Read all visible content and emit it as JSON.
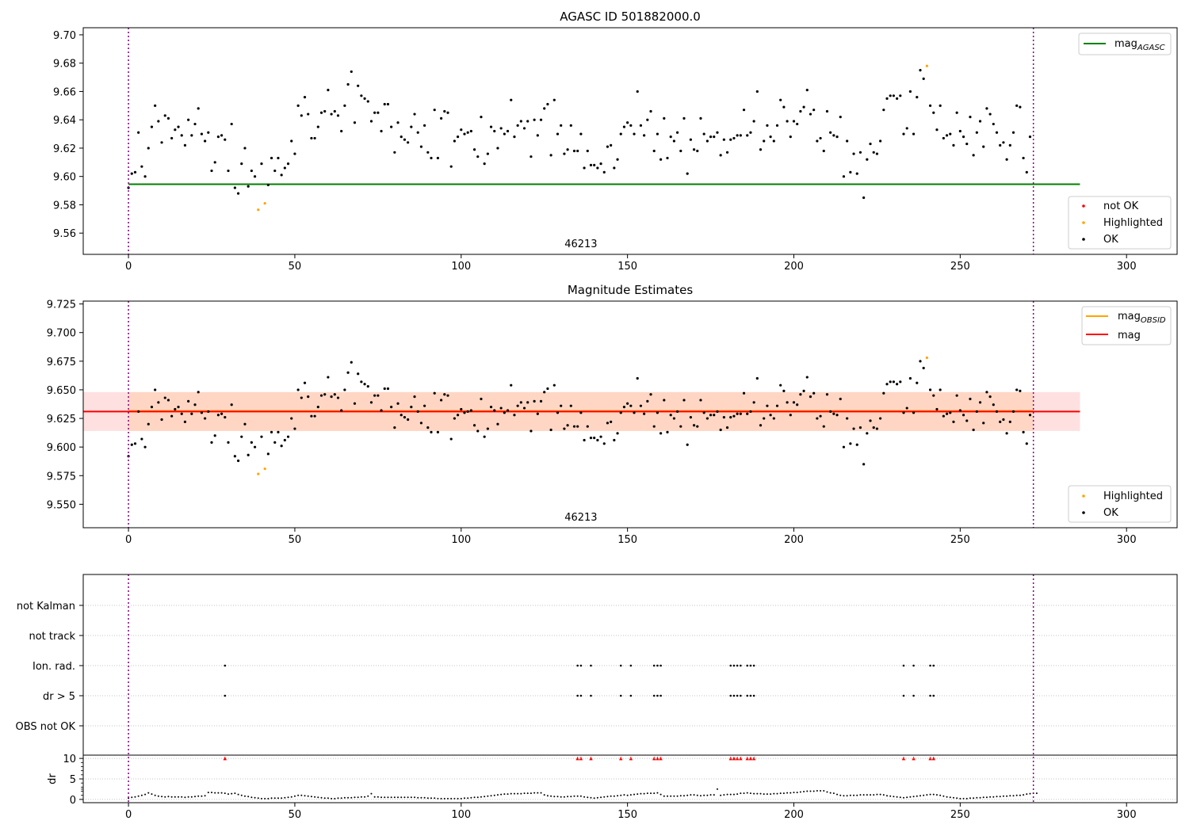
{
  "chart_data": [
    {
      "type": "scatter",
      "title": "AGASC ID 501882000.0",
      "xlim": [
        -13.6,
        315.2
      ],
      "ylim": [
        9.545,
        9.705
      ],
      "xticks": [
        0,
        50,
        100,
        150,
        200,
        250,
        300
      ],
      "yticks": [
        9.56,
        9.58,
        9.6,
        9.62,
        9.64,
        9.66,
        9.68,
        9.7
      ],
      "grid": false,
      "obsid_label": "46213",
      "obsid_bounds": [
        0,
        272
      ],
      "lines": [
        {
          "name": "mag_AGASC",
          "name_main": "mag",
          "name_sub": "AGASC",
          "y": 9.5945,
          "x": [
            0,
            286
          ],
          "color": "#008000"
        }
      ],
      "legend": [
        {
          "label": "not OK",
          "color": "#ff0000"
        },
        {
          "label": "Highlighted",
          "color": "#ffa500"
        },
        {
          "label": "OK",
          "color": "#000000"
        }
      ],
      "highlighted": [
        [
          39,
          9.5765
        ],
        [
          41,
          9.581
        ],
        [
          240,
          9.678
        ]
      ],
      "series_ref": "mag_points"
    },
    {
      "type": "scatter",
      "title": "Magnitude Estimates",
      "xlim": [
        -13.6,
        315.2
      ],
      "ylim": [
        9.5295,
        9.7275
      ],
      "xticks": [
        0,
        50,
        100,
        150,
        200,
        250,
        300
      ],
      "yticks": [
        9.55,
        9.575,
        9.6,
        9.625,
        9.65,
        9.675,
        9.7,
        9.725
      ],
      "grid": false,
      "obsid_label": "46213",
      "obsid_bounds": [
        0,
        272
      ],
      "lines": [
        {
          "name": "mag_OBSID",
          "name_main": "mag",
          "name_sub": "OBSID",
          "y": 9.6315,
          "x": [
            0,
            272
          ],
          "color": "#ffa500",
          "band": [
            9.614,
            9.648
          ]
        },
        {
          "name": "mag",
          "name_main": "mag",
          "name_sub": "",
          "y": 9.631,
          "x": [
            -13.6,
            286
          ],
          "color": "#ff0000",
          "band": [
            9.614,
            9.648
          ]
        }
      ],
      "legend": [
        {
          "label": "Highlighted",
          "color": "#ffa500"
        },
        {
          "label": "OK",
          "color": "#000000"
        }
      ],
      "highlighted": [
        [
          39,
          9.5765
        ],
        [
          41,
          9.581
        ],
        [
          240,
          9.678
        ]
      ],
      "series_ref": "mag_points"
    },
    {
      "type": "scatter",
      "xlim": [
        -13.6,
        315.2
      ],
      "xticks": [
        0,
        50,
        100,
        150,
        200,
        250,
        300
      ],
      "flag_rows": [
        "not Kalman",
        "not track",
        "Ion. rad.",
        "dr > 5",
        "OBS not OK"
      ],
      "flags": {
        "not Kalman": [],
        "not track": [],
        "Ion. rad.": [
          29,
          135,
          136,
          139,
          148,
          151,
          158,
          159,
          160,
          181,
          182,
          183,
          184,
          186,
          187,
          188,
          233,
          236,
          241,
          242
        ],
        "dr > 5": [
          29,
          135,
          136,
          139,
          148,
          151,
          158,
          159,
          160,
          181,
          182,
          183,
          184,
          186,
          187,
          188,
          233,
          236,
          241,
          242
        ],
        "OBS not OK": []
      },
      "dr_ylabel": "dr",
      "dr_ylim": [
        -0.8,
        10.8
      ],
      "dr_yticks": [
        0,
        5,
        10
      ],
      "dr_clipped_marker_value": 10,
      "dr_values": [
        0.3,
        0.5,
        0.6,
        0.8,
        1.0,
        1.2,
        1.6,
        1.3,
        1.0,
        0.8,
        0.7,
        0.6,
        0.7,
        0.6,
        0.6,
        0.6,
        0.6,
        0.5,
        0.6,
        0.6,
        0.7,
        0.8,
        0.8,
        0.9,
        1.7,
        1.7,
        1.6,
        1.6,
        1.6,
        1.5,
        1.3,
        1.4,
        1.5,
        1.2,
        1.0,
        0.8,
        0.7,
        0.5,
        0.4,
        0.3,
        0.2,
        0.2,
        0.2,
        0.3,
        0.3,
        0.3,
        0.3,
        0.4,
        0.5,
        0.6,
        0.8,
        1.0,
        1.0,
        0.9,
        0.8,
        0.7,
        0.6,
        0.5,
        0.4,
        0.3,
        0.3,
        0.2,
        0.2,
        0.3,
        0.3,
        0.4,
        0.4,
        0.4,
        0.5,
        0.5,
        0.6,
        0.6,
        0.8,
        1.4,
        0.6,
        0.6,
        0.5,
        0.5,
        0.5,
        0.5,
        0.5,
        0.5,
        0.5,
        0.5,
        0.5,
        0.5,
        0.5,
        0.4,
        0.4,
        0.4,
        0.3,
        0.3,
        0.3,
        0.2,
        0.2,
        0.2,
        0.2,
        0.2,
        0.2,
        0.2,
        0.2,
        0.3,
        0.3,
        0.4,
        0.5,
        0.5,
        0.6,
        0.7,
        0.8,
        0.9,
        1.0,
        1.1,
        1.2,
        1.3,
        1.3,
        1.4,
        1.4,
        1.4,
        1.4,
        1.5,
        1.5,
        1.5,
        1.6,
        1.6,
        1.6,
        1.1,
        0.9,
        0.8,
        0.7,
        0.7,
        0.6,
        0.6,
        0.7,
        0.7,
        0.8,
        0.8,
        0.8,
        0.6,
        0.5,
        0.4,
        0.3,
        0.4,
        0.5,
        0.6,
        0.7,
        0.8,
        0.8,
        0.9,
        1.0,
        1.1,
        1.0,
        1.1,
        1.2,
        1.3,
        1.4,
        1.4,
        1.5,
        1.5,
        1.5,
        1.6,
        1.2,
        0.8,
        0.8,
        0.8,
        0.8,
        0.8,
        0.9,
        0.9,
        1.0,
        1.1,
        1.1,
        1.0,
        0.9,
        1.0,
        1.0,
        1.1,
        1.1,
        2.5,
        1.0,
        1.1,
        1.2,
        1.2,
        1.2,
        1.3,
        1.5,
        1.5,
        1.6,
        1.5,
        1.4,
        1.4,
        1.4,
        1.3,
        1.3,
        1.3,
        1.4,
        1.4,
        1.5,
        1.5,
        1.6,
        1.6,
        1.7,
        1.7,
        1.8,
        1.9,
        2.0,
        2.0,
        2.0,
        2.1,
        2.1,
        2.1,
        1.8,
        1.6,
        1.5,
        1.2,
        1.0,
        0.9,
        0.9,
        1.0,
        1.0,
        1.0,
        1.1,
        1.1,
        1.1,
        1.1,
        1.1,
        1.2,
        1.2,
        1.1,
        0.9,
        0.8,
        0.7,
        0.6,
        0.5,
        0.4,
        0.5,
        0.6,
        0.7,
        0.8,
        0.9,
        1.0,
        1.1,
        1.2,
        1.2,
        1.1,
        1.0,
        0.8,
        0.6,
        0.5,
        0.4,
        0.3,
        0.2,
        0.2,
        0.2,
        0.3,
        0.3,
        0.4,
        0.4,
        0.5,
        0.5,
        0.6,
        0.6,
        0.7,
        0.7,
        0.8,
        0.8,
        0.9,
        0.9,
        1.0,
        1.0,
        1.1,
        1.3,
        1.4,
        1.5,
        1.5
      ]
    }
  ],
  "mag_points": [
    9.592,
    9.602,
    9.603,
    9.631,
    9.607,
    9.6,
    9.62,
    9.635,
    9.65,
    9.639,
    9.624,
    9.643,
    9.641,
    9.627,
    9.633,
    9.635,
    9.629,
    9.622,
    9.64,
    9.629,
    9.637,
    9.648,
    9.63,
    9.625,
    9.631,
    9.604,
    9.61,
    9.628,
    9.629,
    9.626,
    9.604,
    9.637,
    9.592,
    9.588,
    9.609,
    9.62,
    9.593,
    9.604,
    9.6,
    9.5765,
    9.609,
    9.581,
    9.594,
    9.613,
    9.604,
    9.613,
    9.601,
    9.606,
    9.609,
    9.625,
    9.616,
    9.65,
    9.643,
    9.656,
    9.644,
    9.627,
    9.627,
    9.635,
    9.645,
    9.646,
    9.661,
    9.644,
    9.646,
    9.643,
    9.632,
    9.65,
    9.665,
    9.674,
    9.638,
    9.664,
    9.657,
    9.655,
    9.653,
    9.639,
    9.645,
    9.645,
    9.632,
    9.651,
    9.651,
    9.635,
    9.617,
    9.638,
    9.628,
    9.626,
    9.624,
    9.635,
    9.644,
    9.631,
    9.621,
    9.636,
    9.617,
    9.613,
    9.647,
    9.613,
    9.641,
    9.646,
    9.645,
    9.607,
    9.625,
    9.628,
    9.633,
    9.63,
    9.631,
    9.632,
    9.619,
    9.614,
    9.642,
    9.609,
    9.616,
    9.635,
    9.632,
    9.62,
    9.634,
    9.63,
    9.632,
    9.654,
    9.628,
    9.636,
    9.639,
    9.634,
    9.639,
    9.614,
    9.64,
    9.629,
    9.64,
    9.648,
    9.651,
    9.615,
    9.654,
    9.63,
    9.636,
    9.616,
    9.619,
    9.636,
    9.618,
    9.618,
    9.63,
    9.606,
    9.618,
    9.608,
    9.608,
    9.606,
    9.609,
    9.603,
    9.621,
    9.622,
    9.606,
    9.612,
    9.63,
    9.635,
    9.638,
    9.636,
    9.63,
    9.66,
    9.636,
    9.629,
    9.64,
    9.646,
    9.618,
    9.63,
    9.612,
    9.641,
    9.613,
    9.628,
    9.625,
    9.631,
    9.618,
    9.641,
    9.602,
    9.626,
    9.619,
    9.618,
    9.641,
    9.63,
    9.625,
    9.628,
    9.628,
    9.631,
    9.615,
    9.626,
    9.617,
    9.626,
    9.627,
    9.629,
    9.629,
    9.647,
    9.629,
    9.631,
    9.639,
    9.66,
    9.619,
    9.625,
    9.636,
    9.628,
    9.625,
    9.636,
    9.654,
    9.649,
    9.639,
    9.628,
    9.639,
    9.637,
    9.646,
    9.649,
    9.661,
    9.644,
    9.647,
    9.625,
    9.627,
    9.618,
    9.646,
    9.631,
    9.629,
    9.628,
    9.642,
    9.6,
    9.625,
    9.603,
    9.616,
    9.602,
    9.617,
    9.585,
    9.612,
    9.623,
    9.617,
    9.616,
    9.625,
    9.647,
    9.655,
    9.657,
    9.657,
    9.655,
    9.657,
    9.63,
    9.634,
    9.66,
    9.63,
    9.656,
    9.675,
    9.669,
    9.678,
    9.65,
    9.645,
    9.633,
    9.65,
    9.627,
    9.629,
    9.63,
    9.622,
    9.645,
    9.632,
    9.628,
    9.623,
    9.642,
    9.615,
    9.631,
    9.639,
    9.621,
    9.648,
    9.644,
    9.637,
    9.631,
    9.622,
    9.624,
    9.612,
    9.622,
    9.631,
    9.65,
    9.649,
    9.613,
    9.603,
    9.628
  ]
}
